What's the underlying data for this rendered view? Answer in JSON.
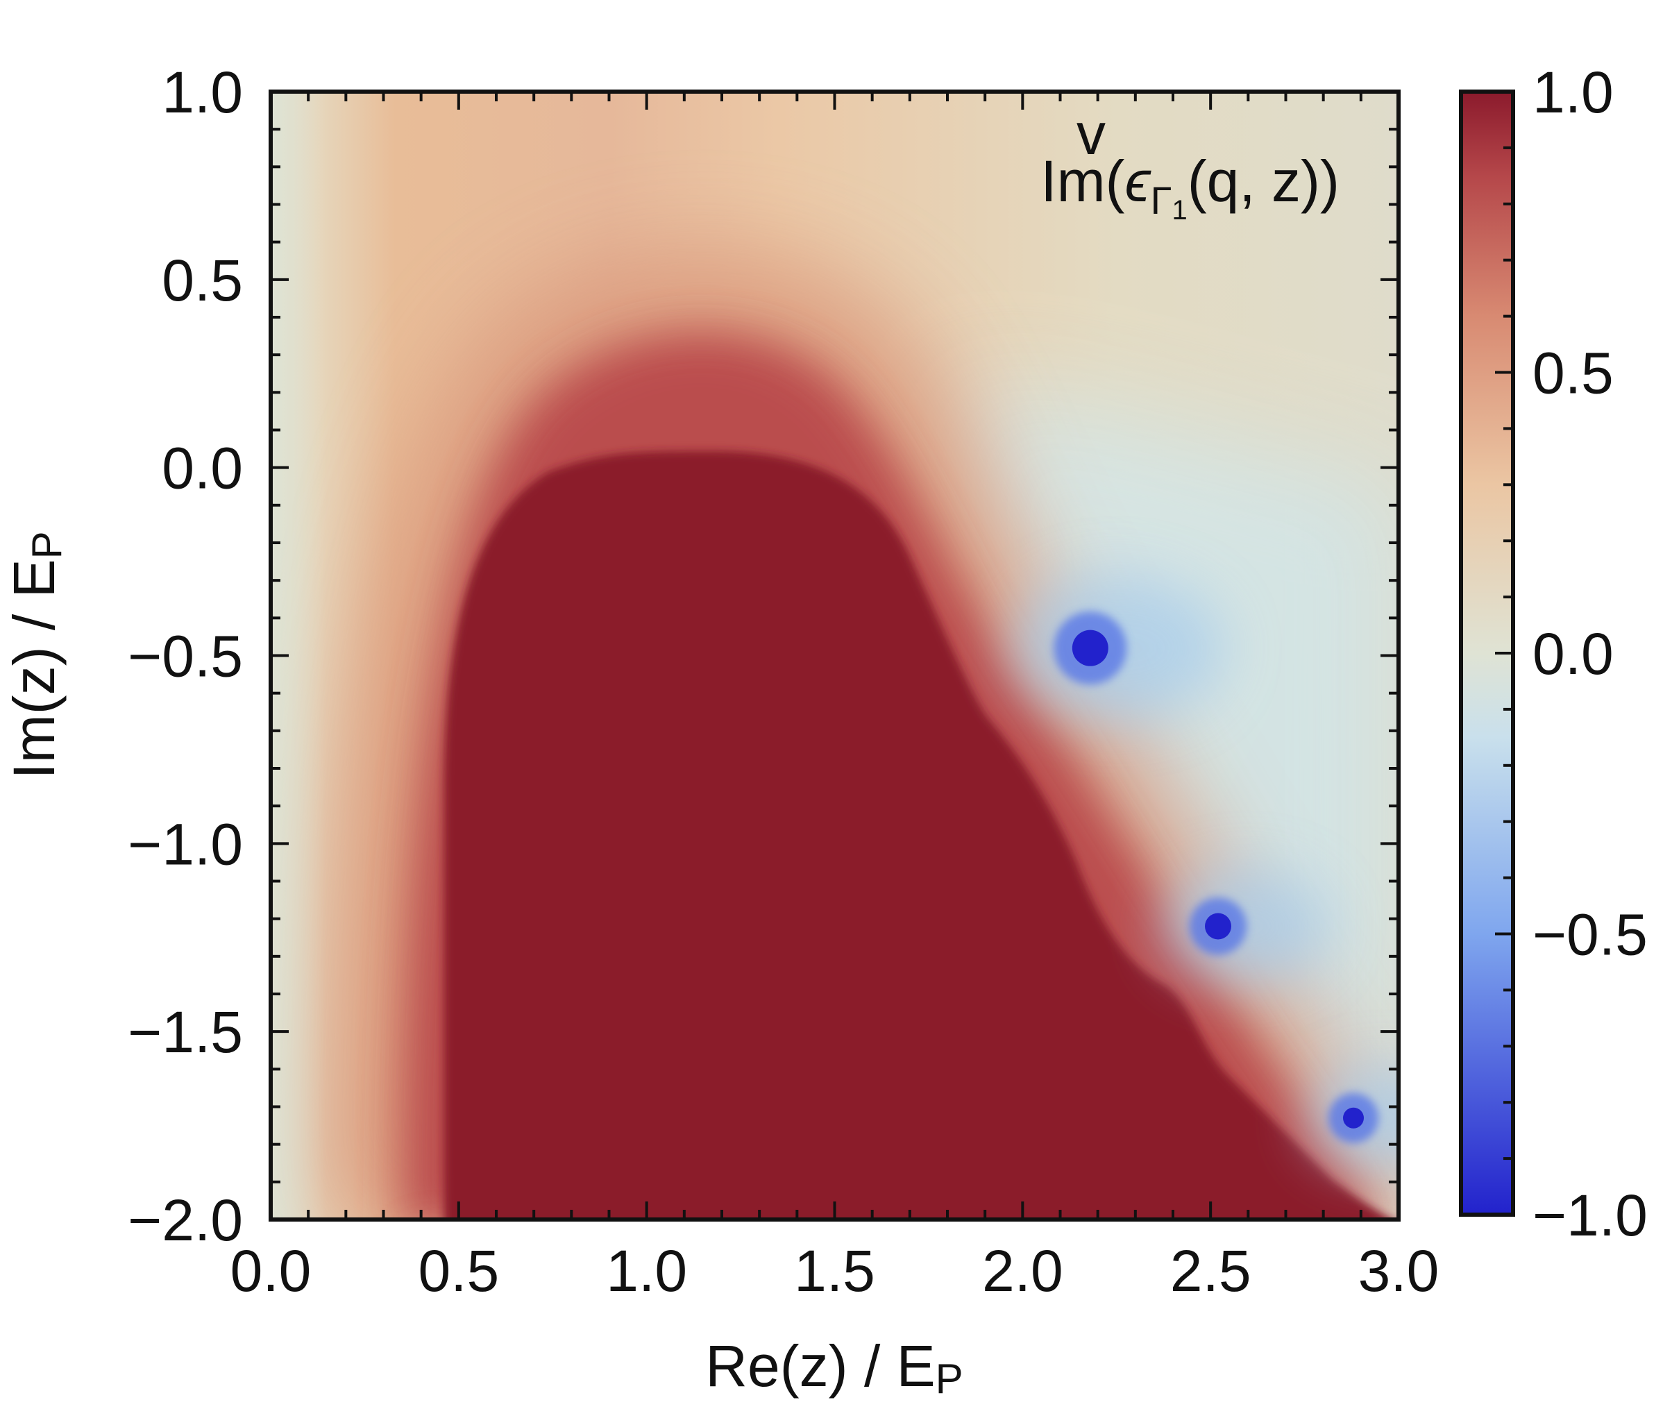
{
  "chart_data": {
    "type": "heatmap",
    "annotation": {
      "prefix": "Im(",
      "symbol": "ϵ",
      "accent": "v",
      "subscript": "Γ",
      "subsub": "1",
      "suffix": "(q, z))"
    },
    "xlabel": {
      "main": "Re(z) / E",
      "sub": "P"
    },
    "ylabel": {
      "main": "Im(z) / E",
      "sub": "P"
    },
    "xlim": [
      0.0,
      3.0
    ],
    "ylim": [
      -2.0,
      1.0
    ],
    "x_ticks": [
      "0.0",
      "0.5",
      "1.0",
      "1.5",
      "2.0",
      "2.5",
      "3.0"
    ],
    "y_ticks": [
      "1.0",
      "0.5",
      "0.0",
      "−0.5",
      "−1.0",
      "−1.5",
      "−2.0"
    ],
    "colorbar": {
      "range": [
        -1.0,
        1.0
      ],
      "ticks": [
        "1.0",
        "0.5",
        "0.0",
        "−0.5",
        "−1.0"
      ],
      "stops": [
        {
          "v": -1.0,
          "color": "#2222cc"
        },
        {
          "v": -0.5,
          "color": "#7fa6ee"
        },
        {
          "v": -0.15,
          "color": "#c9e0ec"
        },
        {
          "v": 0.0,
          "color": "#dfe3d4"
        },
        {
          "v": 0.3,
          "color": "#ebc6a3"
        },
        {
          "v": 0.6,
          "color": "#d88a72"
        },
        {
          "v": 0.85,
          "color": "#b5474a"
        },
        {
          "v": 1.0,
          "color": "#8b1a2c"
        }
      ]
    },
    "saturated_region_value": 1.0,
    "background_value": 0.0,
    "poles": [
      {
        "re": 2.18,
        "im": -0.48,
        "value": -1.0
      },
      {
        "re": 2.52,
        "im": -1.22,
        "value": -1.0
      },
      {
        "re": 2.88,
        "im": -1.73,
        "value": -1.0
      }
    ],
    "grid": false
  }
}
